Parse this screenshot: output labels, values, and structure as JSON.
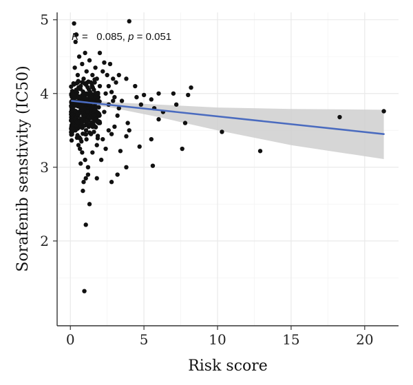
{
  "chart_data": {
    "type": "scatter",
    "xlabel": "Risk score",
    "ylabel": "Sorafenib senstivity (IC50)",
    "xlim": [
      -0.9,
      22.3
    ],
    "ylim": [
      0.85,
      5.1
    ],
    "xticks": [
      0,
      5,
      10,
      15,
      20
    ],
    "yticks": [
      2,
      3,
      4,
      5
    ],
    "grid": true,
    "annotation": {
      "r_symbol": "R",
      "r_text": " =   0.085, ",
      "p_symbol": "p",
      "p_text": " = 0.051"
    },
    "regression": {
      "color": "#4a6bbf",
      "band_color": "#cfcfcf",
      "x": [
        0.1,
        21.3
      ],
      "y": [
        3.9,
        3.45
      ],
      "band": [
        {
          "x": 0.1,
          "lo": 3.87,
          "hi": 3.93
        },
        {
          "x": 1.0,
          "lo": 3.86,
          "hi": 3.91
        },
        {
          "x": 3.0,
          "lo": 3.8,
          "hi": 3.88
        },
        {
          "x": 6.0,
          "lo": 3.68,
          "hi": 3.85
        },
        {
          "x": 10.0,
          "lo": 3.5,
          "hi": 3.81
        },
        {
          "x": 15.0,
          "lo": 3.3,
          "hi": 3.79
        },
        {
          "x": 21.3,
          "lo": 3.11,
          "hi": 3.78
        }
      ]
    },
    "points_color": "#111111",
    "points": [
      [
        0.25,
        4.95
      ],
      [
        0.4,
        4.8
      ],
      [
        0.35,
        4.7
      ],
      [
        4.0,
        4.98
      ],
      [
        1.0,
        4.55
      ],
      [
        0.6,
        4.5
      ],
      [
        1.3,
        4.45
      ],
      [
        2.0,
        4.55
      ],
      [
        0.8,
        4.4
      ],
      [
        2.7,
        4.4
      ],
      [
        2.2,
        4.3
      ],
      [
        2.5,
        4.25
      ],
      [
        3.3,
        4.25
      ],
      [
        3.8,
        4.2
      ],
      [
        2.9,
        4.2
      ],
      [
        1.1,
        4.3
      ],
      [
        0.3,
        4.35
      ],
      [
        0.5,
        4.25
      ],
      [
        1.7,
        4.35
      ],
      [
        2.3,
        4.42
      ],
      [
        1.5,
        4.25
      ],
      [
        3.1,
        4.15
      ],
      [
        4.4,
        4.1
      ],
      [
        5.0,
        3.98
      ],
      [
        6.0,
        4.0
      ],
      [
        7.0,
        4.0
      ],
      [
        8.2,
        4.08
      ],
      [
        8.0,
        3.98
      ],
      [
        4.5,
        3.95
      ],
      [
        5.5,
        3.92
      ],
      [
        3.5,
        3.9
      ],
      [
        4.8,
        3.85
      ],
      [
        6.3,
        3.75
      ],
      [
        7.2,
        3.85
      ],
      [
        6.0,
        3.65
      ],
      [
        5.7,
        3.8
      ],
      [
        7.8,
        3.6
      ],
      [
        3.9,
        3.6
      ],
      [
        3.2,
        3.7
      ],
      [
        4.0,
        3.5
      ],
      [
        3.0,
        3.55
      ],
      [
        2.6,
        3.5
      ],
      [
        2.8,
        3.45
      ],
      [
        3.8,
        3.42
      ],
      [
        5.5,
        3.38
      ],
      [
        4.7,
        3.28
      ],
      [
        3.4,
        3.22
      ],
      [
        2.4,
        3.25
      ],
      [
        1.8,
        3.3
      ],
      [
        1.5,
        3.2
      ],
      [
        2.1,
        3.1
      ],
      [
        7.6,
        3.25
      ],
      [
        10.3,
        3.48
      ],
      [
        12.9,
        3.22
      ],
      [
        18.3,
        3.68
      ],
      [
        21.3,
        3.76
      ],
      [
        3.8,
        3.0
      ],
      [
        5.6,
        3.02
      ],
      [
        3.2,
        2.9
      ],
      [
        2.8,
        2.8
      ],
      [
        1.8,
        2.85
      ],
      [
        1.2,
        2.9
      ],
      [
        1.05,
        2.85
      ],
      [
        0.9,
        2.8
      ],
      [
        0.85,
        2.68
      ],
      [
        1.3,
        2.5
      ],
      [
        1.05,
        2.22
      ],
      [
        0.95,
        1.32
      ],
      [
        0.7,
        3.05
      ],
      [
        1.0,
        3.1
      ],
      [
        1.2,
        3.0
      ],
      [
        0.8,
        3.2
      ],
      [
        1.2,
        3.7
      ],
      [
        1.6,
        3.65
      ],
      [
        2.0,
        3.6
      ],
      [
        2.3,
        3.75
      ],
      [
        2.6,
        3.85
      ],
      [
        2.9,
        3.9
      ],
      [
        3.3,
        3.8
      ],
      [
        0.2,
        3.7
      ],
      [
        1.9,
        3.95
      ],
      [
        1.4,
        3.9
      ],
      [
        2.4,
        4.0
      ],
      [
        2.0,
        4.1
      ],
      [
        1.6,
        4.05
      ],
      [
        2.8,
        4.02
      ],
      [
        3.0,
        3.95
      ],
      [
        1.7,
        3.8
      ],
      [
        1.1,
        4.0
      ],
      [
        1.3,
        3.88
      ],
      [
        0.95,
        3.72
      ],
      [
        1.25,
        3.55
      ],
      [
        1.4,
        3.45
      ],
      [
        0.75,
        3.35
      ],
      [
        1.6,
        3.48
      ],
      [
        2.2,
        3.38
      ],
      [
        0.5,
        4.15
      ],
      [
        0.9,
        4.2
      ],
      [
        1.4,
        4.15
      ],
      [
        1.8,
        4.2
      ],
      [
        0.4,
        4.05
      ],
      [
        0.7,
        4.1
      ],
      [
        2.6,
        4.1
      ],
      [
        0.3,
        3.95
      ],
      [
        0.6,
        3.6
      ],
      [
        0.35,
        3.5
      ],
      [
        0.45,
        3.4
      ],
      [
        0.55,
        3.3
      ],
      [
        0.65,
        3.25
      ],
      [
        0.3,
        3.6
      ],
      [
        0.8,
        3.55
      ],
      [
        1.0,
        3.45
      ]
    ],
    "cluster": {
      "x_range": [
        0.05,
        2.0
      ],
      "y_range": [
        3.3,
        4.25
      ],
      "count": 320,
      "seed": 7
    }
  }
}
